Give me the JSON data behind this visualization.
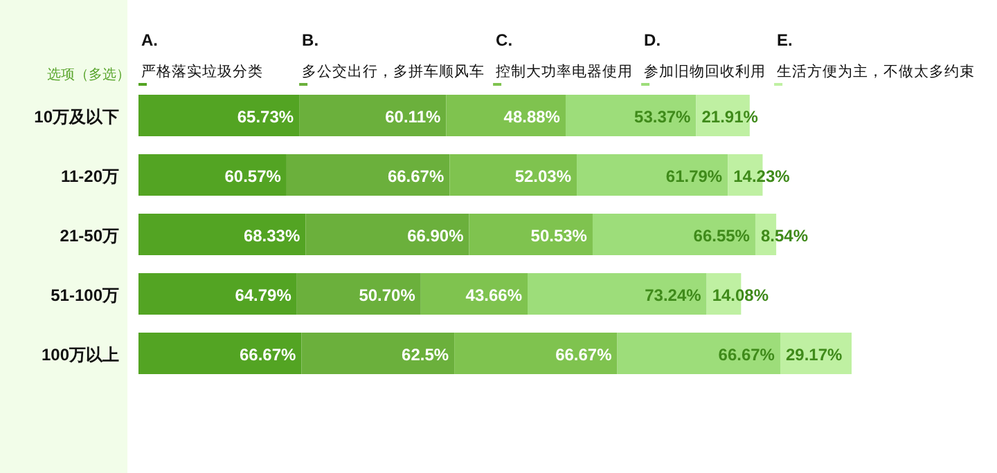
{
  "chart_data": {
    "type": "bar",
    "orientation": "horizontal",
    "stacked": true,
    "legend": "top",
    "legend_title": "选项（多选）",
    "categories": [
      "10万及以下",
      "11-20万",
      "21-50万",
      "51-100万",
      "100万以上"
    ],
    "series": [
      {
        "name": "A.\n严格落实垃圾分类",
        "color": "#53a423",
        "values": [
          65.73,
          60.57,
          68.33,
          64.79,
          66.67
        ],
        "value_labels": [
          "65.73%",
          "60.57%",
          "68.33%",
          "64.79%",
          "66.67%"
        ]
      },
      {
        "name": "B.\n多公交出行，多拼车顺风车",
        "color": "#6bb03c",
        "values": [
          60.11,
          66.67,
          66.9,
          50.7,
          62.5
        ],
        "value_labels": [
          "60.11%",
          "66.67%",
          "66.90%",
          "50.70%",
          "62.5%"
        ]
      },
      {
        "name": "C.\n控制大功率电器使用",
        "color": "#7fc34f",
        "values": [
          48.88,
          52.03,
          50.53,
          43.66,
          66.67
        ],
        "value_labels": [
          "48.88%",
          "52.03%",
          "50.53%",
          "43.66%",
          "66.67%"
        ]
      },
      {
        "name": "D.\n参加旧物回收利用",
        "color": "#9ddd7a",
        "values": [
          53.37,
          61.79,
          66.55,
          73.24,
          66.67
        ],
        "value_labels": [
          "53.37%",
          "61.79%",
          "66.55%",
          "73.24%",
          "66.67%"
        ]
      },
      {
        "name": "E.\n生活方便为主，不做太多约束",
        "color": "#bff0a2",
        "values": [
          21.91,
          14.23,
          8.54,
          14.08,
          29.17
        ],
        "value_labels": [
          "21.91%",
          "14.23%",
          "8.54%",
          "14.08%",
          "29.17%"
        ]
      }
    ]
  }
}
